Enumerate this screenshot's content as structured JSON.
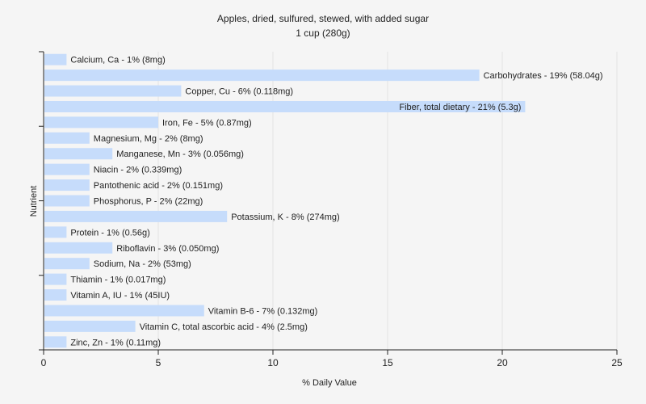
{
  "chart_data": {
    "type": "bar",
    "orientation": "horizontal",
    "title": "Apples, dried, sulfured, stewed, with added sugar",
    "subtitle": "1 cup (280g)",
    "xlabel": "% Daily Value",
    "ylabel": "Nutrient",
    "xlim": [
      0,
      25
    ],
    "xticks": [
      0,
      5,
      10,
      15,
      20,
      25
    ],
    "grid": true,
    "bar_color": "#c6dcfb",
    "background_color": "#f5f5f5",
    "categories": [
      "Calcium, Ca",
      "Carbohydrates",
      "Copper, Cu",
      "Fiber, total dietary",
      "Iron, Fe",
      "Magnesium, Mg",
      "Manganese, Mn",
      "Niacin",
      "Pantothenic acid",
      "Phosphorus, P",
      "Potassium, K",
      "Protein",
      "Riboflavin",
      "Sodium, Na",
      "Thiamin",
      "Vitamin A, IU",
      "Vitamin B-6",
      "Vitamin C, total ascorbic acid",
      "Zinc, Zn"
    ],
    "values": [
      1,
      19,
      6,
      21,
      5,
      2,
      3,
      2,
      2,
      2,
      8,
      1,
      3,
      2,
      1,
      1,
      7,
      4,
      1
    ],
    "labels": [
      "Calcium, Ca - 1% (8mg)",
      "Carbohydrates - 19% (58.04g)",
      "Copper, Cu - 6% (0.118mg)",
      "Fiber, total dietary - 21% (5.3g)",
      "Iron, Fe - 5% (0.87mg)",
      "Magnesium, Mg - 2% (8mg)",
      "Manganese, Mn - 3% (0.056mg)",
      "Niacin - 2% (0.339mg)",
      "Pantothenic acid - 2% (0.151mg)",
      "Phosphorus, P - 2% (22mg)",
      "Potassium, K - 8% (274mg)",
      "Protein - 1% (0.56g)",
      "Riboflavin - 3% (0.050mg)",
      "Sodium, Na - 2% (53mg)",
      "Thiamin - 1% (0.017mg)",
      "Vitamin A, IU - 1% (45IU)",
      "Vitamin B-6 - 7% (0.132mg)",
      "Vitamin C, total ascorbic acid - 4% (2.5mg)",
      "Zinc, Zn - 1% (0.11mg)"
    ]
  }
}
